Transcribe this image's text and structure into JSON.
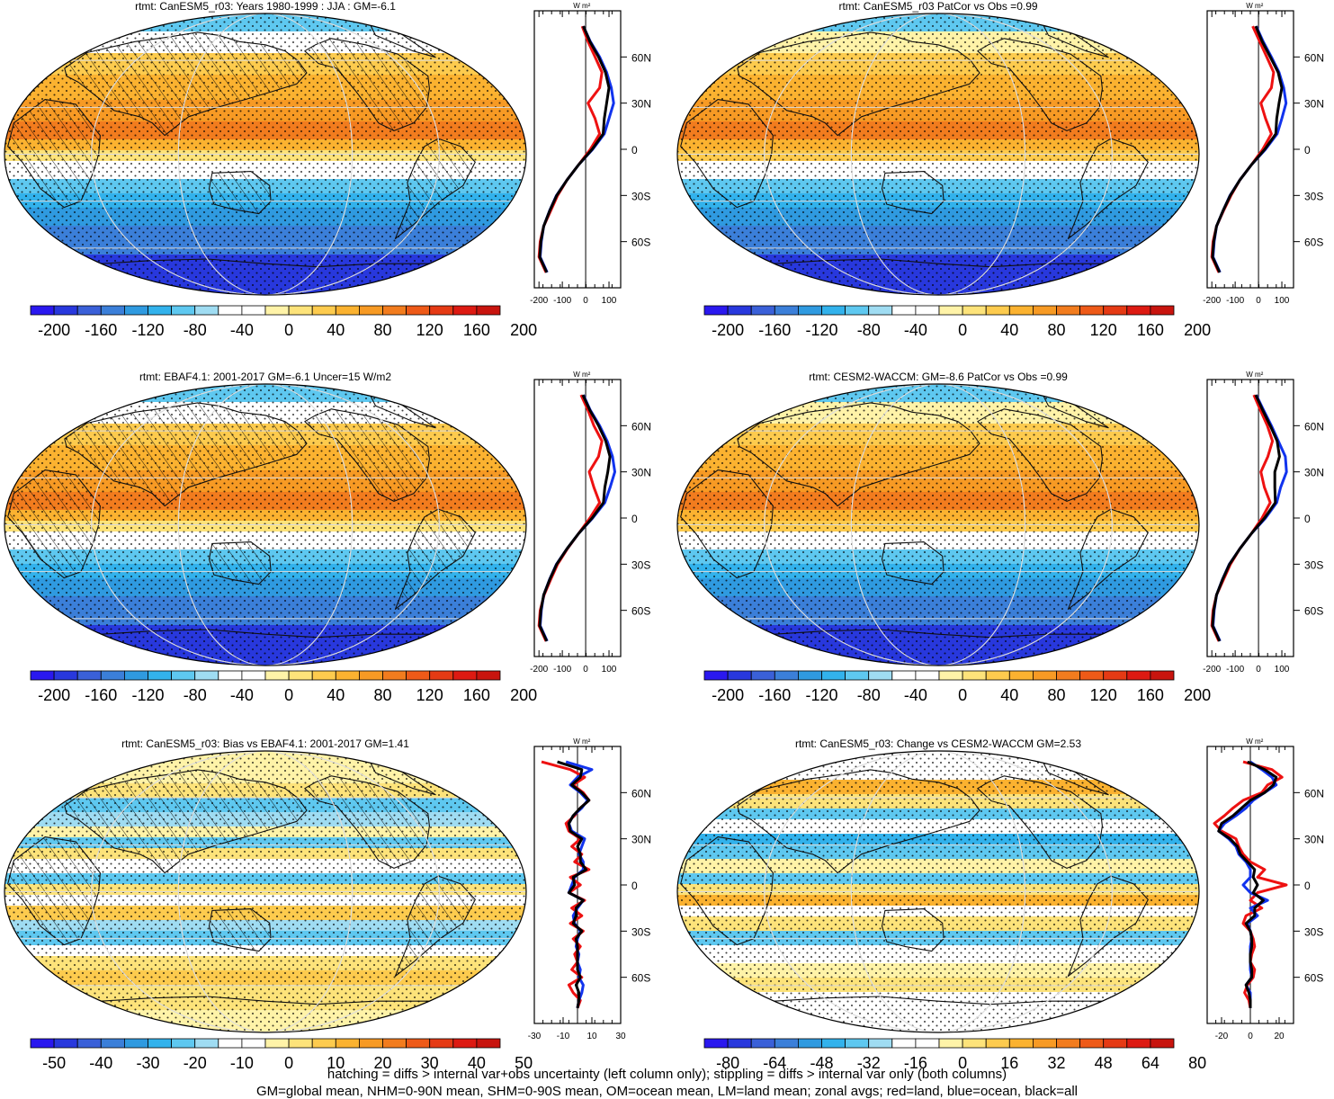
{
  "colors": {
    "red_land": "#ee1111",
    "blue_ocean": "#1133ee",
    "black_all": "#000000",
    "land_outline": "#111111",
    "grid": "#dcdcdc"
  },
  "colorbars": {
    "abs": {
      "colors": [
        "#2a18ef",
        "#2838dd",
        "#3a60d8",
        "#3b7fd9",
        "#2f9ae0",
        "#32b2ec",
        "#5ec8f0",
        "#9fdcf2",
        "#ffffff",
        "#ffffff",
        "#fff3a8",
        "#fde37a",
        "#fdcb4e",
        "#fbb230",
        "#f79a24",
        "#f27c1e",
        "#ee5a18",
        "#e53a14",
        "#dd1a12",
        "#c8140e"
      ],
      "tick_labels": [
        "-200",
        "-160",
        "-120",
        "-80",
        "-40",
        "0",
        "40",
        "80",
        "120",
        "160",
        "200"
      ]
    },
    "bias": {
      "colors": [
        "#2a18ef",
        "#2838dd",
        "#3a60d8",
        "#3b7fd9",
        "#2f9ae0",
        "#32b2ec",
        "#5ec8f0",
        "#9fdcf2",
        "#ffffff",
        "#ffffff",
        "#fff3a8",
        "#fde37a",
        "#fdcb4e",
        "#fbb230",
        "#f79a24",
        "#f27c1e",
        "#ee5a18",
        "#e53a14",
        "#dd1a12",
        "#c8140e"
      ],
      "tick_labels": [
        "-50",
        "-40",
        "-30",
        "-20",
        "-10",
        "0",
        "10",
        "20",
        "30",
        "40",
        "50"
      ]
    },
    "change": {
      "colors": [
        "#2a18ef",
        "#2838dd",
        "#3a60d8",
        "#3b7fd9",
        "#2f9ae0",
        "#32b2ec",
        "#5ec8f0",
        "#9fdcf2",
        "#ffffff",
        "#ffffff",
        "#fff3a8",
        "#fde37a",
        "#fdcb4e",
        "#fbb230",
        "#f79a24",
        "#f27c1e",
        "#ee5a18",
        "#e53a14",
        "#dd1a12",
        "#c8140e"
      ],
      "tick_labels": [
        "-80",
        "-64",
        "-48",
        "-32",
        "-16",
        "0",
        "16",
        "32",
        "48",
        "64",
        "80"
      ]
    }
  },
  "footer": {
    "line1": "hatching = diffs > internal var+obs uncertainty (left column only); stippling = diffs > internal var only (both columns)",
    "line2": "GM=global mean, NHM=0-90N mean, SHM=0-90S mean, OM=ocean mean, LM=land mean; zonal avgs; red=land, blue=ocean, black=all"
  },
  "chart_data": [
    {
      "type": "heatmap",
      "title": "rtmt: CanESM5_r03: Years 1980-1999 : JJA : GM=-6.1",
      "field": "abs",
      "colorbar": "abs",
      "hatching": true,
      "zonal": {
        "unit": "W m²",
        "xlim": [
          -220,
          150
        ],
        "xticks": [
          "-200",
          "-100",
          "0",
          "100"
        ],
        "ylabels": [
          "60N",
          "30N",
          "0",
          "30S",
          "60S"
        ],
        "lat": [
          80,
          70,
          60,
          50,
          40,
          30,
          20,
          10,
          0,
          -10,
          -20,
          -30,
          -40,
          -50,
          -60,
          -70,
          -80
        ],
        "series": [
          {
            "name": "red=land",
            "color": "#ee1111",
            "values": [
              -15,
              10,
              40,
              70,
              60,
              10,
              40,
              60,
              20,
              -30,
              -80,
              -120,
              -150,
              -180,
              -195,
              -200,
              -170
            ]
          },
          {
            "name": "blue=ocean",
            "color": "#1133ee",
            "values": [
              -10,
              20,
              60,
              90,
              110,
              120,
              100,
              80,
              30,
              -30,
              -80,
              -125,
              -155,
              -180,
              -190,
              -195,
              -165
            ]
          },
          {
            "name": "black=all",
            "color": "#000000",
            "values": [
              -10,
              18,
              55,
              85,
              100,
              90,
              80,
              75,
              28,
              -30,
              -80,
              -124,
              -154,
              -180,
              -192,
              -197,
              -167
            ]
          }
        ]
      }
    },
    {
      "type": "heatmap",
      "title": "rtmt: CanESM5_r03 PatCor vs Obs =0.99",
      "field": "abs2",
      "colorbar": "abs",
      "hatching": false,
      "zonal": {
        "unit": "W m²",
        "xlim": [
          -220,
          150
        ],
        "xticks": [
          "-200",
          "-100",
          "0",
          "100"
        ],
        "ylabels": [
          "60N",
          "30N",
          "0",
          "30S",
          "60S"
        ],
        "lat": [
          80,
          70,
          60,
          50,
          40,
          30,
          20,
          10,
          0,
          -10,
          -20,
          -30,
          -40,
          -50,
          -60,
          -70,
          -80
        ],
        "series": [
          {
            "name": "red=land",
            "color": "#ee1111",
            "values": [
              -25,
              5,
              35,
              65,
              55,
              10,
              30,
              55,
              18,
              -30,
              -80,
              -118,
              -150,
              -180,
              -195,
              -200,
              -170
            ]
          },
          {
            "name": "blue=ocean",
            "color": "#1133ee",
            "values": [
              -10,
              20,
              55,
              88,
              108,
              118,
              100,
              80,
              30,
              -30,
              -80,
              -122,
              -152,
              -180,
              -190,
              -195,
              -165
            ]
          },
          {
            "name": "black=all",
            "color": "#000000",
            "values": [
              -12,
              16,
              50,
              84,
              100,
              88,
              78,
              74,
              27,
              -30,
              -80,
              -121,
              -152,
              -180,
              -192,
              -197,
              -167
            ]
          }
        ]
      }
    },
    {
      "type": "heatmap",
      "title": "rtmt: EBAF4.1: 2001-2017 GM=-6.1 Uncer=15 W/m2",
      "field": "abs",
      "colorbar": "abs",
      "hatching": true,
      "zonal": {
        "unit": "W m²",
        "xlim": [
          -220,
          150
        ],
        "xticks": [
          "-200",
          "-100",
          "0",
          "100"
        ],
        "ylabels": [
          "60N",
          "30N",
          "0",
          "30S",
          "60S"
        ],
        "lat": [
          80,
          70,
          60,
          50,
          40,
          30,
          20,
          10,
          0,
          -10,
          -20,
          -30,
          -40,
          -50,
          -60,
          -70,
          -80
        ],
        "series": [
          {
            "name": "red=land",
            "color": "#ee1111",
            "values": [
              -20,
              10,
              35,
              70,
              55,
              15,
              35,
              60,
              18,
              -30,
              -78,
              -120,
              -150,
              -178,
              -195,
              -200,
              -170
            ]
          },
          {
            "name": "blue=ocean",
            "color": "#1133ee",
            "values": [
              -10,
              20,
              60,
              92,
              115,
              125,
              105,
              82,
              30,
              -30,
              -80,
              -125,
              -155,
              -180,
              -190,
              -195,
              -165
            ]
          },
          {
            "name": "black=all",
            "color": "#000000",
            "values": [
              -12,
              18,
              55,
              86,
              104,
              95,
              82,
              76,
              28,
              -30,
              -80,
              -124,
              -154,
              -180,
              -192,
              -197,
              -167
            ]
          }
        ]
      }
    },
    {
      "type": "heatmap",
      "title": "rtmt: CESM2-WACCM: GM=-8.6 PatCor vs Obs =0.99",
      "field": "abs2",
      "colorbar": "abs",
      "hatching": false,
      "zonal": {
        "unit": "W m²",
        "xlim": [
          -220,
          150
        ],
        "xticks": [
          "-200",
          "-100",
          "0",
          "100"
        ],
        "ylabels": [
          "60N",
          "30N",
          "0",
          "30S",
          "60S"
        ],
        "lat": [
          80,
          70,
          60,
          50,
          40,
          30,
          20,
          10,
          0,
          -10,
          -20,
          -30,
          -40,
          -50,
          -60,
          -70,
          -80
        ],
        "series": [
          {
            "name": "red=land",
            "color": "#ee1111",
            "values": [
              -20,
              8,
              38,
              60,
              40,
              10,
              25,
              50,
              15,
              -30,
              -80,
              -120,
              -150,
              -180,
              -195,
              -200,
              -170
            ]
          },
          {
            "name": "blue=ocean",
            "color": "#1133ee",
            "values": [
              -10,
              22,
              55,
              85,
              115,
              120,
              95,
              78,
              30,
              -30,
              -80,
              -125,
              -155,
              -180,
              -190,
              -195,
              -165
            ]
          },
          {
            "name": "black=all",
            "color": "#000000",
            "values": [
              -12,
              18,
              50,
              80,
              90,
              70,
              70,
              72,
              26,
              -30,
              -80,
              -124,
              -154,
              -180,
              -192,
              -197,
              -167
            ]
          }
        ]
      }
    },
    {
      "type": "heatmap",
      "title": "rtmt: CanESM5_r03: Bias vs EBAF4.1: 2001-2017 GM=1.41",
      "field": "bias",
      "colorbar": "bias",
      "hatching": true,
      "zonal": {
        "unit": "W m²",
        "xlim": [
          -30,
          30
        ],
        "xticks": [
          "-30",
          "-10",
          "10",
          "30"
        ],
        "ylabels": [
          "60N",
          "30N",
          "0",
          "30S",
          "60S"
        ],
        "lat": [
          80,
          75,
          70,
          65,
          60,
          55,
          50,
          45,
          40,
          35,
          30,
          25,
          20,
          15,
          10,
          5,
          0,
          -5,
          -10,
          -15,
          -20,
          -25,
          -30,
          -35,
          -40,
          -45,
          -50,
          -55,
          -60,
          -65,
          -70,
          -75,
          -80
        ],
        "series": [
          {
            "name": "red=land",
            "color": "#ee1111",
            "values": [
              -25,
              -5,
              5,
              -3,
              4,
              8,
              2,
              -2,
              -8,
              -6,
              2,
              -4,
              3,
              -2,
              8,
              -5,
              2,
              -6,
              5,
              -4,
              3,
              -5,
              4,
              -3,
              2,
              -2,
              0,
              -4,
              3,
              -6,
              -3,
              2,
              0
            ]
          },
          {
            "name": "blue=ocean",
            "color": "#1133ee",
            "values": [
              -8,
              10,
              0,
              -5,
              2,
              7,
              3,
              -3,
              -6,
              -4,
              5,
              3,
              1,
              4,
              4,
              -2,
              -4,
              -6,
              4,
              0,
              -3,
              -2,
              2,
              0,
              -1,
              1,
              0,
              2,
              1,
              4,
              3,
              1,
              0
            ]
          },
          {
            "name": "black=all",
            "color": "#000000",
            "values": [
              -14,
              3,
              2,
              -4,
              3,
              8,
              2,
              -3,
              -6,
              -5,
              3,
              0,
              2,
              2,
              6,
              -3,
              -2,
              -6,
              4,
              -1,
              -1,
              -3,
              3,
              -1,
              0,
              0,
              0,
              0,
              2,
              -1,
              1,
              1,
              0
            ]
          }
        ]
      }
    },
    {
      "type": "heatmap",
      "title": "rtmt: CanESM5_r03: Change vs CESM2-WACCM GM=2.53",
      "field": "change",
      "colorbar": "change",
      "hatching": false,
      "zonal": {
        "unit": "W m²",
        "xlim": [
          -30,
          30
        ],
        "xticks": [
          "-20",
          "0",
          "20"
        ],
        "ylabels": [
          "60N",
          "30N",
          "0",
          "30S",
          "60S"
        ],
        "lat": [
          80,
          75,
          70,
          65,
          60,
          55,
          50,
          45,
          40,
          35,
          30,
          25,
          20,
          15,
          10,
          5,
          0,
          -5,
          -10,
          -15,
          -20,
          -25,
          -30,
          -35,
          -40,
          -45,
          -50,
          -55,
          -60,
          -65,
          -70,
          -75,
          -80
        ],
        "series": [
          {
            "name": "red=land",
            "color": "#ee1111",
            "values": [
              -5,
              15,
              22,
              12,
              8,
              -5,
              -12,
              -18,
              -25,
              -20,
              -10,
              -8,
              -5,
              0,
              10,
              5,
              25,
              5,
              0,
              8,
              -3,
              -5,
              0,
              2,
              3,
              1,
              0,
              3,
              2,
              -2,
              -4,
              -1,
              0
            ]
          },
          {
            "name": "blue=ocean",
            "color": "#1133ee",
            "values": [
              0,
              8,
              15,
              18,
              10,
              2,
              -3,
              -10,
              -18,
              -22,
              -15,
              -10,
              -8,
              -3,
              0,
              0,
              -5,
              0,
              12,
              0,
              5,
              -2,
              0,
              1,
              0,
              0,
              0,
              0,
              1,
              -3,
              0,
              0,
              0
            ]
          },
          {
            "name": "black=all",
            "color": "#000000",
            "values": [
              -2,
              10,
              18,
              16,
              10,
              0,
              -6,
              -12,
              -20,
              -22,
              -14,
              -9,
              -7,
              -2,
              3,
              2,
              5,
              2,
              9,
              3,
              3,
              -3,
              0,
              1,
              1,
              0,
              0,
              1,
              1,
              -3,
              -1,
              0,
              0
            ]
          }
        ]
      }
    }
  ]
}
